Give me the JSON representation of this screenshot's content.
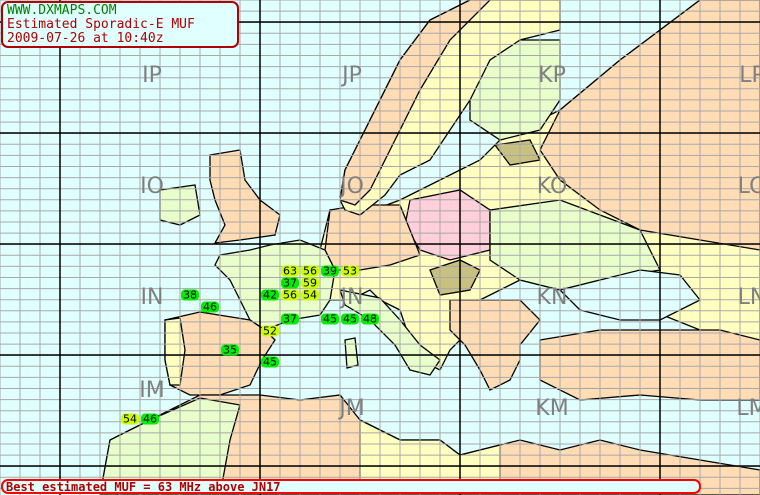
{
  "header": {
    "site": "WWW.DXMAPS.COM",
    "title": "Estimated Sporadic-E MUF",
    "datetime": "2009-07-26 at 10:40z"
  },
  "status": "Best estimated MUF = 63 MHz above JN17",
  "colors": {
    "water": "#e0ffff",
    "muf_low": "#00ee00",
    "muf_high": "#ccff00",
    "frame": "#b00000"
  },
  "grid_squares": [
    {
      "label": "IP",
      "col": 0,
      "row": 0
    },
    {
      "label": "JP",
      "col": 1,
      "row": 0
    },
    {
      "label": "KP",
      "col": 2,
      "row": 0
    },
    {
      "label": "LP",
      "col": 3,
      "row": 0
    },
    {
      "label": "IO",
      "col": 0,
      "row": 1
    },
    {
      "label": "JO",
      "col": 1,
      "row": 1
    },
    {
      "label": "KO",
      "col": 2,
      "row": 1
    },
    {
      "label": "LO",
      "col": 3,
      "row": 1
    },
    {
      "label": "IN",
      "col": 0,
      "row": 2
    },
    {
      "label": "JN",
      "col": 1,
      "row": 2
    },
    {
      "label": "KN",
      "col": 2,
      "row": 2
    },
    {
      "label": "LN",
      "col": 3,
      "row": 2
    },
    {
      "label": "IM",
      "col": 0,
      "row": 3
    },
    {
      "label": "JM",
      "col": 1,
      "row": 3
    },
    {
      "label": "KM",
      "col": 2,
      "row": 3
    },
    {
      "label": "LM",
      "col": 3,
      "row": 3
    }
  ],
  "muf_values": [
    {
      "value": "63",
      "level": "high"
    },
    {
      "value": "56",
      "level": "high"
    },
    {
      "value": "39",
      "level": "low"
    },
    {
      "value": "53",
      "level": "high"
    },
    {
      "value": "37",
      "level": "low"
    },
    {
      "value": "59",
      "level": "high"
    },
    {
      "value": "42",
      "level": "low"
    },
    {
      "value": "56",
      "level": "high"
    },
    {
      "value": "54",
      "level": "high"
    },
    {
      "value": "38",
      "level": "low"
    },
    {
      "value": "46",
      "level": "low"
    },
    {
      "value": "37",
      "level": "low"
    },
    {
      "value": "45",
      "level": "low"
    },
    {
      "value": "45",
      "level": "low"
    },
    {
      "value": "48",
      "level": "low"
    },
    {
      "value": "52",
      "level": "high"
    },
    {
      "value": "35",
      "level": "low"
    },
    {
      "value": "45",
      "level": "low"
    },
    {
      "value": "54",
      "level": "high"
    },
    {
      "value": "46",
      "level": "low"
    }
  ]
}
